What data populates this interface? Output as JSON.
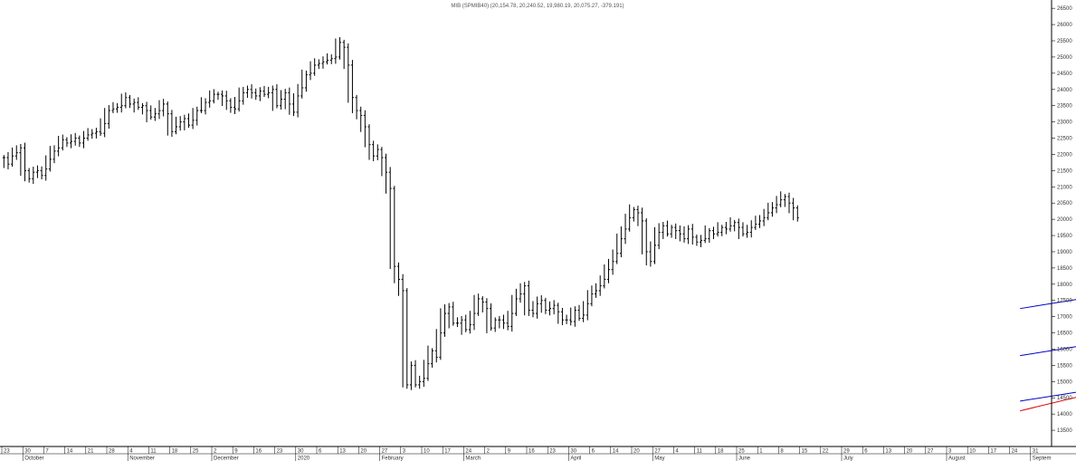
{
  "chart_data": {
    "type": "ohlc",
    "title": "MIB (SPMIB40) (20,154.78, 20,240.52, 19,980.19, 20,075.27, -379.191)",
    "y_range": [
      13000,
      26700
    ],
    "y_ticks": [
      13500,
      14000,
      14500,
      15000,
      15500,
      16000,
      16500,
      17000,
      17500,
      18000,
      18500,
      19000,
      19500,
      20000,
      20500,
      21000,
      21500,
      22000,
      22500,
      23000,
      23500,
      24000,
      24500,
      25000,
      25500,
      26000,
      26500
    ],
    "x_day_labels": [
      "23",
      "30",
      "7",
      "14",
      "21",
      "28",
      "4",
      "11",
      "18",
      "25",
      "2",
      "9",
      "16",
      "23",
      "30",
      "6",
      "13",
      "20",
      "27",
      "3",
      "10",
      "17",
      "24",
      "2",
      "9",
      "16",
      "23",
      "30",
      "6",
      "14",
      "20",
      "27",
      "4",
      "11",
      "18",
      "25",
      "1",
      "8",
      "15",
      "22",
      "29",
      "6",
      "13",
      "20",
      "27",
      "3",
      "10",
      "17",
      "24",
      "31"
    ],
    "x_month_labels": [
      {
        "label": "October",
        "idx": 1
      },
      {
        "label": "November",
        "idx": 6
      },
      {
        "label": "December",
        "idx": 10
      },
      {
        "label": "2020",
        "idx": 14
      },
      {
        "label": "February",
        "idx": 18
      },
      {
        "label": "March",
        "idx": 22
      },
      {
        "label": "April",
        "idx": 27
      },
      {
        "label": "May",
        "idx": 31
      },
      {
        "label": "June",
        "idx": 35
      },
      {
        "label": "July",
        "idx": 40
      },
      {
        "label": "August",
        "idx": 45
      },
      {
        "label": "Septem",
        "idx": 49
      }
    ],
    "closes": [
      21900,
      21700,
      21950,
      22050,
      22200,
      21500,
      21250,
      21450,
      21500,
      21350,
      21550,
      21850,
      22100,
      22200,
      22450,
      22350,
      22400,
      22500,
      22350,
      22500,
      22600,
      22650,
      22700,
      22650,
      22950,
      23350,
      23400,
      23450,
      23500,
      23750,
      23550,
      23600,
      23450,
      23500,
      23350,
      23150,
      23250,
      23350,
      23550,
      23250,
      22700,
      22850,
      23000,
      23100,
      22900,
      23050,
      23350,
      23350,
      23600,
      23650,
      23850,
      23850,
      23800,
      23650,
      23450,
      23400,
      23650,
      23900,
      24000,
      23900,
      23800,
      23950,
      23850,
      23900,
      24000,
      23500,
      23700,
      23900,
      23550,
      23300,
      23800,
      24050,
      24450,
      24500,
      24750,
      24800,
      24850,
      24900,
      24950,
      25000,
      25450,
      25300,
      24750,
      23750,
      23350,
      23200,
      22850,
      22300,
      21950,
      22150,
      21900,
      21450,
      20950,
      18550,
      18150,
      17800,
      14900,
      15500,
      14900,
      15000,
      15100,
      15550,
      15950,
      15750,
      16500,
      17100,
      17300,
      16800,
      16800,
      16900,
      16600,
      16750,
      17100,
      17550,
      17450,
      17250,
      16650,
      16900,
      16900,
      16800,
      16700,
      17100,
      17550,
      17700,
      17950,
      17200,
      17100,
      17400,
      17500,
      17200,
      17250,
      17350,
      17150,
      16900,
      16900,
      16850,
      17200,
      16950,
      17050,
      17400,
      17700,
      17800,
      17950,
      18150,
      18450,
      18700,
      18950,
      19400,
      19700,
      20050,
      20300,
      20200,
      19950,
      19000,
      18700,
      19200,
      19600,
      19800,
      19550,
      19750,
      19650,
      19550,
      19400,
      19700,
      19450,
      19300,
      19350,
      19400,
      19650,
      19550,
      19600,
      19750,
      19700,
      19800,
      19900,
      19750,
      19550,
      19600,
      19750,
      19850,
      19950,
      20050,
      20200,
      20350,
      20450,
      20600,
      20700,
      20500,
      20350,
      20050
    ],
    "channel_lines": [
      {
        "name": "upper",
        "color": "#0000c8",
        "x": [
          97,
          221
        ],
        "y": [
          17250,
          23720
        ]
      },
      {
        "name": "middle",
        "color": "#0000c8",
        "x": [
          97,
          221
        ],
        "y": [
          15800,
          22220
        ]
      },
      {
        "name": "lower",
        "color": "#0000c8",
        "x": [
          97,
          221
        ],
        "y": [
          14400,
          20730
        ]
      },
      {
        "name": "trend",
        "color": "#e00000",
        "x": [
          97,
          221
        ],
        "y": [
          14100,
          23720
        ]
      }
    ],
    "grid": false,
    "accent_color": "#0000c8",
    "trend_color": "#e00000",
    "bar_color": "#000000"
  }
}
